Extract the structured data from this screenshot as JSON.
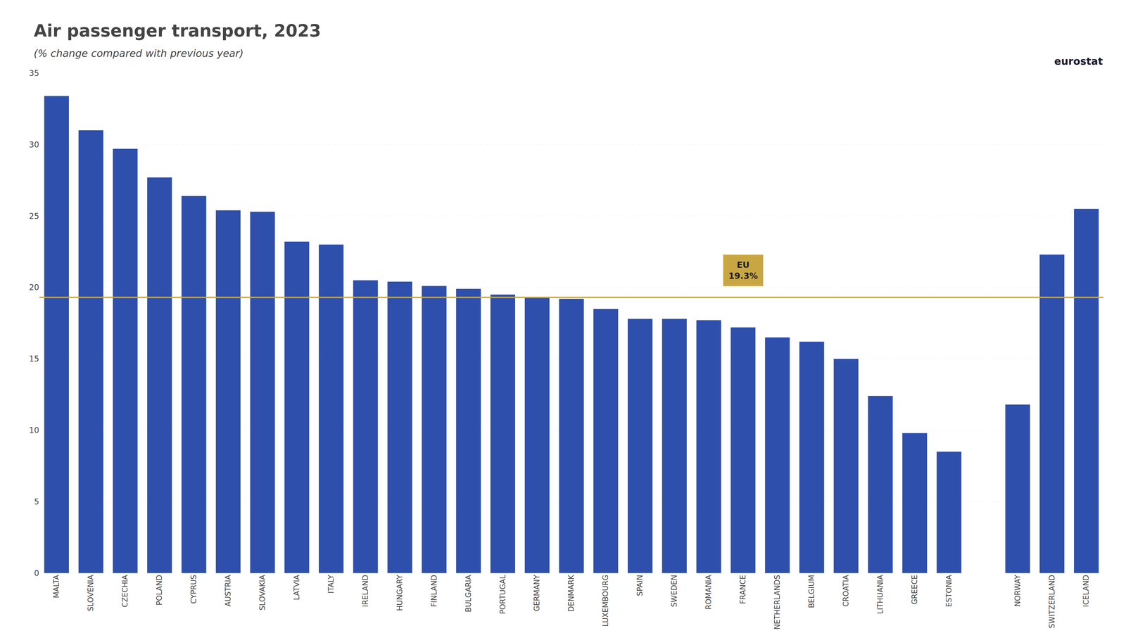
{
  "chart_data": {
    "type": "bar",
    "title": "Air passenger transport, 2023",
    "subtitle": "(% change compared with previous year)",
    "categories": [
      "MALTA",
      "SLOVENIA",
      "CZECHIA",
      "POLAND",
      "CYPRUS",
      "AUSTRIA",
      "SLOVAKIA",
      "LATVIA",
      "ITALY",
      "IRELAND",
      "HUNGARY",
      "FINLAND",
      "BULGARIA",
      "PORTUGAL",
      "GERMANY",
      "DENMARK",
      "LUXEMBOURG",
      "SPAIN",
      "SWEDEN",
      "ROMANIA",
      "FRANCE",
      "NETHERLANDS",
      "BELGIUM",
      "CROATIA",
      "LITHUANIA",
      "GREECE",
      "ESTONIA",
      null,
      "NORWAY",
      "SWITZERLAND",
      "ICELAND"
    ],
    "values": [
      33.4,
      31.0,
      29.7,
      27.7,
      26.4,
      25.4,
      25.3,
      23.2,
      23.0,
      20.5,
      20.4,
      20.1,
      19.9,
      19.5,
      19.3,
      19.2,
      18.5,
      17.8,
      17.8,
      17.7,
      17.2,
      16.5,
      16.2,
      15.0,
      12.4,
      9.8,
      8.5,
      null,
      11.8,
      22.3,
      25.5
    ],
    "color": "#2E4FAB",
    "ylim": [
      0,
      35
    ],
    "yticks": [
      0,
      5,
      10,
      15,
      20,
      25,
      30,
      35
    ],
    "grid": true,
    "reference_line": {
      "value": 19.3,
      "color": "#C8A743",
      "label": [
        "EU",
        "19.3%"
      ]
    },
    "annotations": [
      "eurostat"
    ]
  }
}
